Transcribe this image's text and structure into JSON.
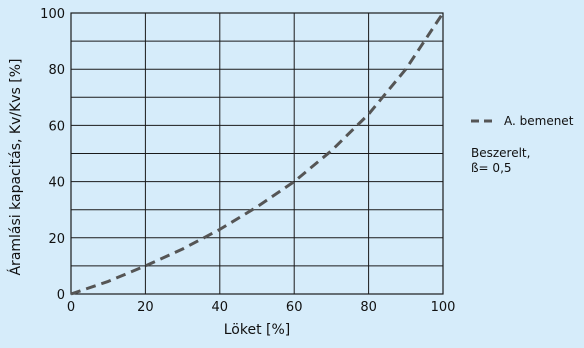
{
  "chart_data": {
    "type": "line",
    "title": "",
    "xlabel": "Löket [%]",
    "ylabel": "Áramlási kapacitás, Kv/Kvs [%]",
    "xlim": [
      0,
      100
    ],
    "ylim": [
      0,
      100
    ],
    "x_ticks": [
      "0",
      "20",
      "40",
      "60",
      "80",
      "100"
    ],
    "y_ticks": [
      "0",
      "20",
      "40",
      "60",
      "80",
      "100"
    ],
    "grid": true,
    "series": [
      {
        "name": "A. bemenet",
        "line_style": "dashed",
        "color": "#555555",
        "x": [
          0,
          10,
          20,
          30,
          40,
          50,
          60,
          70,
          80,
          90,
          100
        ],
        "y": [
          0,
          4.5,
          10,
          16,
          23,
          31,
          40,
          51,
          64,
          80,
          100
        ]
      }
    ],
    "legend": {
      "placement": "right",
      "entries": [
        "A. bemenet"
      ],
      "note": [
        "Beszerelt,",
        "ß= 0,5"
      ]
    }
  },
  "colors": {
    "background": "#d6ecfa",
    "plot_background": "#d6ecfa",
    "grid": "#1a1a1a",
    "text": "#111111",
    "series": "#555555"
  }
}
